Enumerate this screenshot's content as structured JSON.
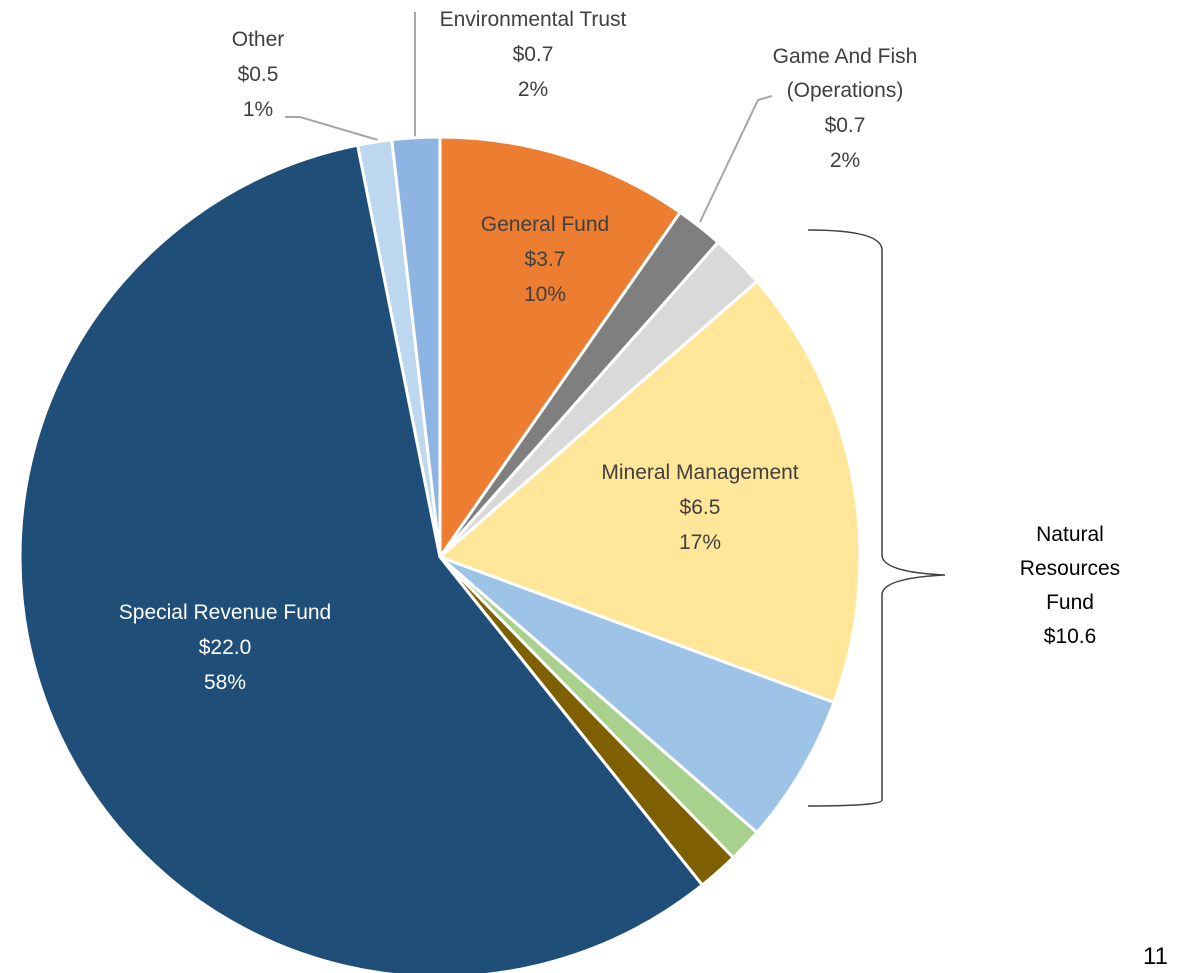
{
  "chart_data": {
    "type": "pie",
    "categories": [
      "General Fund",
      "Game And Fish (Operations)",
      null,
      "Mineral Management",
      null,
      null,
      null,
      "Special Revenue Fund",
      "Other",
      "Environmental Trust"
    ],
    "values": [
      3.7,
      0.7,
      0.8,
      6.5,
      2.2,
      0.5,
      0.6,
      22.0,
      0.5,
      0.7
    ],
    "value_labels": [
      "$3.7",
      "$0.7",
      null,
      "$6.5",
      null,
      null,
      null,
      "$22.0",
      "$0.5",
      "$0.7"
    ],
    "percents": [
      10,
      2,
      null,
      17,
      null,
      null,
      null,
      58,
      1,
      2
    ],
    "percent_labels": [
      "10%",
      "2%",
      null,
      "17%",
      null,
      null,
      null,
      "58%",
      "1%",
      "2%"
    ],
    "colors": [
      "#ed7d31",
      "#7f7f7f",
      "#d9d9d9",
      "#ffe699",
      "#9dc3e6",
      "#a9d18e",
      "#7f6000",
      "#1f4e79",
      "#bdd7ee",
      "#8db4e2"
    ],
    "annotation": {
      "lines": [
        "Natural Resources",
        "Fund",
        "$10.6"
      ]
    },
    "page_number": "11"
  }
}
